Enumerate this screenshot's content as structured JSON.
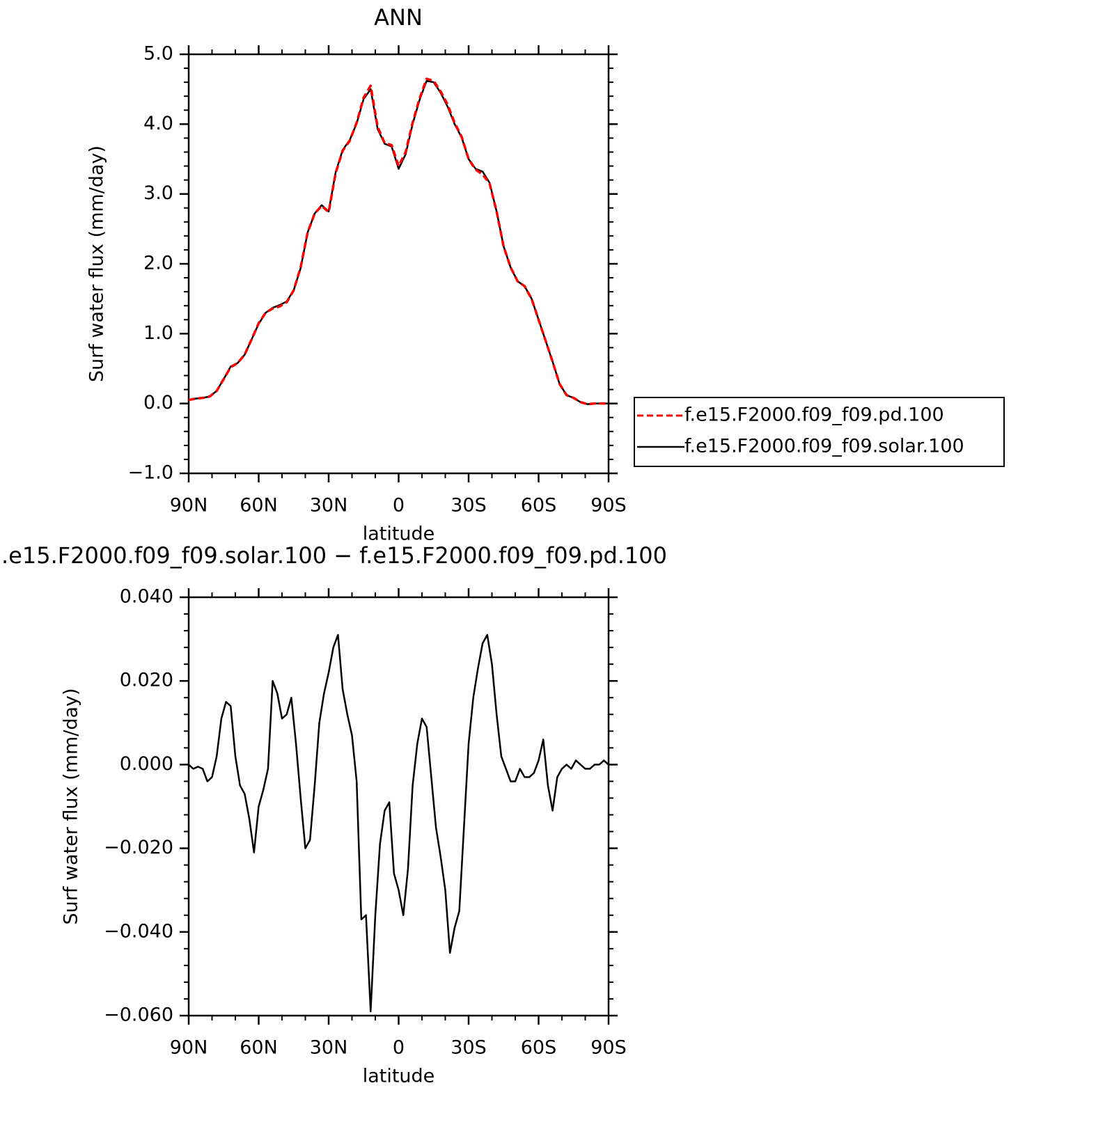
{
  "chart_data": [
    {
      "type": "line",
      "title": "ANN",
      "xlabel": "latitude",
      "ylabel": "Surf water flux (mm/day)",
      "x": [
        90,
        87,
        84,
        81,
        78,
        75,
        72,
        69,
        66,
        63,
        60,
        57,
        54,
        51,
        48,
        45,
        42,
        39,
        36,
        33,
        30,
        27,
        24,
        21,
        18,
        15,
        12,
        9,
        6,
        3,
        0,
        -3,
        -6,
        -9,
        -12,
        -15,
        -18,
        -21,
        -24,
        -27,
        -30,
        -33,
        -36,
        -39,
        -42,
        -45,
        -48,
        -51,
        -54,
        -57,
        -60,
        -63,
        -66,
        -69,
        -72,
        -75,
        -78,
        -81,
        -84,
        -87,
        -90
      ],
      "series": [
        {
          "name": "f.e15.F2000.f09_f09.pd.100",
          "color": "#ff0000",
          "linestyle": "dashed",
          "values": [
            0.05,
            0.07,
            0.08,
            0.1,
            0.18,
            0.35,
            0.52,
            0.58,
            0.7,
            0.92,
            1.15,
            1.3,
            1.36,
            1.39,
            1.45,
            1.62,
            1.95,
            2.45,
            2.72,
            2.83,
            2.74,
            3.3,
            3.62,
            3.76,
            4.02,
            4.38,
            4.55,
            3.96,
            3.73,
            3.7,
            3.4,
            3.6,
            4.02,
            4.37,
            4.65,
            4.62,
            4.47,
            4.28,
            4.02,
            3.82,
            3.5,
            3.35,
            3.28,
            3.15,
            2.75,
            2.25,
            1.95,
            1.75,
            1.68,
            1.5,
            1.2,
            0.9,
            0.6,
            0.28,
            0.12,
            0.08,
            0.02,
            -0.01,
            0.0,
            0.0,
            0.0
          ]
        },
        {
          "name": "f.e15.F2000.f09_f09.solar.100",
          "color": "#000000",
          "linestyle": "solid",
          "values": [
            0.05,
            0.07,
            0.08,
            0.1,
            0.18,
            0.35,
            0.53,
            0.58,
            0.7,
            0.92,
            1.14,
            1.3,
            1.37,
            1.41,
            1.46,
            1.62,
            1.94,
            2.45,
            2.72,
            2.84,
            2.75,
            3.31,
            3.63,
            3.77,
            4.01,
            4.36,
            4.5,
            3.93,
            3.72,
            3.68,
            3.36,
            3.57,
            4.0,
            4.35,
            4.62,
            4.6,
            4.45,
            4.25,
            4.0,
            3.81,
            3.5,
            3.36,
            3.32,
            3.16,
            2.75,
            2.25,
            1.95,
            1.75,
            1.68,
            1.5,
            1.2,
            0.9,
            0.6,
            0.28,
            0.12,
            0.08,
            0.02,
            -0.01,
            0.0,
            0.0,
            0.0
          ]
        }
      ],
      "xlim": [
        90,
        -90
      ],
      "xticks": [
        {
          "value": 90,
          "label": "90N"
        },
        {
          "value": 60,
          "label": "60N"
        },
        {
          "value": 30,
          "label": "30N"
        },
        0,
        {
          "value": -30,
          "label": "30S"
        },
        {
          "value": -60,
          "label": "60S"
        },
        {
          "value": -90,
          "label": "90S"
        }
      ],
      "xminorticks": [
        80,
        70,
        50,
        40,
        20,
        10,
        -10,
        -20,
        -40,
        -50,
        -70,
        -80
      ],
      "ylim": [
        -1,
        5
      ],
      "yticks": [
        {
          "value": -1,
          "label": "−1.0"
        },
        {
          "value": 0,
          "label": "0.0"
        },
        {
          "value": 1,
          "label": "1.0"
        },
        {
          "value": 2,
          "label": "2.0"
        },
        {
          "value": 3,
          "label": "3.0"
        },
        {
          "value": 4,
          "label": "4.0"
        },
        {
          "value": 5,
          "label": "5.0"
        }
      ],
      "yminorticks": [
        -0.8,
        -0.6,
        -0.4,
        -0.2,
        0.2,
        0.4,
        0.6,
        0.8,
        1.2,
        1.4,
        1.6,
        1.8,
        2.2,
        2.4,
        2.6,
        2.8,
        3.2,
        3.4,
        3.6,
        3.8,
        4.2,
        4.4,
        4.6,
        4.8
      ],
      "legend": "outside-right"
    },
    {
      "type": "line",
      "title": ".e15.F2000.f09_f09.solar.100 − f.e15.F2000.f09_f09.pd.100",
      "xlabel": "latitude",
      "ylabel": "Surf water flux (mm/day)",
      "x": [
        90,
        88,
        86,
        84,
        82,
        80,
        78,
        76,
        74,
        72,
        70,
        68,
        66,
        64,
        62,
        60,
        58,
        56,
        54,
        52,
        50,
        48,
        46,
        44,
        42,
        40,
        38,
        36,
        34,
        32,
        30,
        28,
        26,
        24,
        22,
        20,
        18,
        16,
        14,
        12,
        10,
        8,
        6,
        4,
        2,
        0,
        -2,
        -4,
        -6,
        -8,
        -10,
        -12,
        -14,
        -16,
        -18,
        -20,
        -22,
        -24,
        -26,
        -28,
        -30,
        -32,
        -34,
        -36,
        -38,
        -40,
        -42,
        -44,
        -46,
        -48,
        -50,
        -52,
        -54,
        -56,
        -58,
        -60,
        -62,
        -64,
        -66,
        -68,
        -70,
        -72,
        -74,
        -76,
        -78,
        -80,
        -82,
        -84,
        -86,
        -88,
        -90
      ],
      "series": [
        {
          "color": "#000000",
          "linestyle": "solid",
          "values": [
            0.0,
            -0.001,
            -0.0005,
            -0.001,
            -0.004,
            -0.003,
            0.002,
            0.011,
            0.015,
            0.014,
            0.002,
            -0.005,
            -0.007,
            -0.013,
            -0.021,
            -0.01,
            -0.006,
            -0.001,
            0.02,
            0.017,
            0.011,
            0.012,
            0.016,
            0.005,
            -0.008,
            -0.02,
            -0.018,
            -0.005,
            0.01,
            0.017,
            0.022,
            0.028,
            0.031,
            0.018,
            0.012,
            0.007,
            -0.004,
            -0.037,
            -0.036,
            -0.059,
            -0.036,
            -0.019,
            -0.011,
            -0.009,
            -0.026,
            -0.03,
            -0.036,
            -0.025,
            -0.005,
            0.005,
            0.011,
            0.009,
            -0.003,
            -0.015,
            -0.022,
            -0.03,
            -0.045,
            -0.039,
            -0.035,
            -0.015,
            0.005,
            0.016,
            0.023,
            0.029,
            0.031,
            0.024,
            0.012,
            0.002,
            -0.001,
            -0.004,
            -0.004,
            -0.001,
            -0.003,
            -0.003,
            -0.002,
            0.001,
            0.006,
            -0.005,
            -0.011,
            -0.003,
            -0.001,
            0.0,
            -0.001,
            0.001,
            0.0,
            -0.001,
            -0.001,
            0.0,
            0.0,
            0.001,
            0.0
          ]
        }
      ],
      "xlim": [
        90,
        -90
      ],
      "xticks": [
        {
          "value": 90,
          "label": "90N"
        },
        {
          "value": 60,
          "label": "60N"
        },
        {
          "value": 30,
          "label": "30N"
        },
        0,
        {
          "value": -30,
          "label": "30S"
        },
        {
          "value": -60,
          "label": "60S"
        },
        {
          "value": -90,
          "label": "90S"
        }
      ],
      "xminorticks": [
        80,
        70,
        50,
        40,
        20,
        10,
        -10,
        -20,
        -40,
        -50,
        -70,
        -80
      ],
      "ylim": [
        -0.06,
        0.04
      ],
      "yticks": [
        {
          "value": -0.06,
          "label": "−0.060"
        },
        {
          "value": -0.04,
          "label": "−0.040"
        },
        {
          "value": -0.02,
          "label": "−0.020"
        },
        {
          "value": 0,
          "label": "0.000"
        },
        {
          "value": 0.02,
          "label": "0.020"
        },
        {
          "value": 0.04,
          "label": "0.040"
        }
      ],
      "yminorticks": [
        -0.056,
        -0.052,
        -0.048,
        -0.044,
        -0.036,
        -0.032,
        -0.028,
        -0.024,
        -0.016,
        -0.012,
        -0.008,
        -0.004,
        0.004,
        0.008,
        0.012,
        0.016,
        0.024,
        0.028,
        0.032,
        0.036
      ]
    }
  ]
}
